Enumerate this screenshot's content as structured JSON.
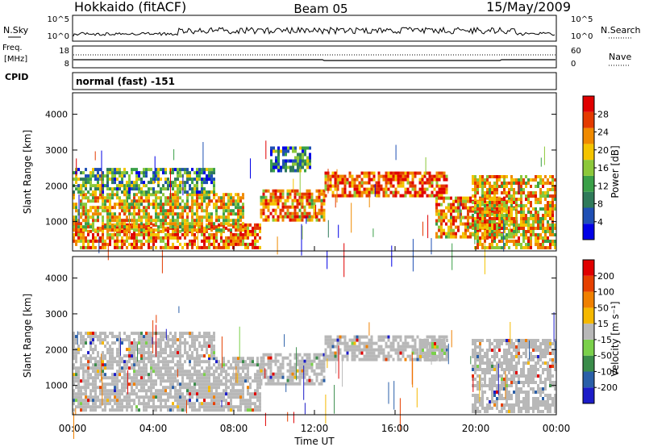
{
  "header": {
    "station": "Hokkaido (fitACF)",
    "beam": "Beam 05",
    "date": "15/May/2009"
  },
  "strip_labels": {
    "nsky": "N.Sky",
    "nsearch": "N.Search",
    "freq_line1": "Freq.",
    "freq_line2": "[MHz]",
    "nave": "Nave",
    "cpid": "CPID",
    "mode": "normal (fast) -151"
  },
  "strip_ticks": {
    "noise_left": [
      "10^5",
      "10^0"
    ],
    "noise_right": [
      "10^5",
      "10^0"
    ],
    "freq_left": [
      "18",
      "8"
    ],
    "nave_right": [
      "60",
      "0"
    ]
  },
  "colors": {
    "power": [
      "#0000e6",
      "#1f4fb4",
      "#2f7a5a",
      "#3aa048",
      "#8cc83a",
      "#f4c400",
      "#f08a00",
      "#e43a00",
      "#e00000"
    ],
    "velocity": [
      "#1c1cc8",
      "#2a5fa8",
      "#3a8c4a",
      "#7ad04a",
      "#b8b8b8",
      "#f5b800",
      "#f08000",
      "#e64000",
      "#e00000"
    ]
  },
  "chart_data": [
    {
      "type": "heatmap",
      "name": "power",
      "xlabel": "",
      "ylabel": "Slant Range [km]",
      "colorbar_label": "Power [dB]",
      "colorbar_ticks": [
        "28",
        "24",
        "20",
        "16",
        "12",
        "8",
        "4"
      ],
      "x_ticks": [
        "00:00",
        "04:00",
        "08:00",
        "12:00",
        "16:00",
        "20:00",
        "00:00"
      ],
      "xlim_hours": [
        0,
        24
      ],
      "ylim_km": [
        180,
        4600
      ],
      "y_ticks": [
        1000,
        2000,
        3000,
        4000
      ],
      "echo_bands": [
        {
          "t_start": 0.0,
          "t_end": 9.3,
          "r_low": 300,
          "r_high": 950,
          "level": 0.75
        },
        {
          "t_start": 0.0,
          "t_end": 8.5,
          "r_low": 800,
          "r_high": 1800,
          "level": 0.6
        },
        {
          "t_start": 9.3,
          "t_end": 12.5,
          "r_low": 1050,
          "r_high": 1900,
          "level": 0.7
        },
        {
          "t_start": 12.5,
          "t_end": 18.6,
          "r_low": 1700,
          "r_high": 2400,
          "level": 0.8
        },
        {
          "t_start": 18.0,
          "t_end": 22.0,
          "r_low": 600,
          "r_high": 1700,
          "level": 0.7
        },
        {
          "t_start": 19.8,
          "t_end": 24.0,
          "r_low": 300,
          "r_high": 2300,
          "level": 0.65
        },
        {
          "t_start": 0.0,
          "t_end": 7.0,
          "r_low": 1800,
          "r_high": 2500,
          "level": 0.35
        },
        {
          "t_start": 9.8,
          "t_end": 11.8,
          "r_low": 2400,
          "r_high": 3100,
          "level": 0.3
        }
      ]
    },
    {
      "type": "heatmap",
      "name": "velocity",
      "xlabel": "Time UT",
      "ylabel": "Slant Range [km]",
      "colorbar_label": "Velocity [m s⁻¹]",
      "colorbar_ticks": [
        "200",
        "100",
        "50",
        "15",
        "-15",
        "-50",
        "-100",
        "-200"
      ],
      "x_ticks": [
        "00:00",
        "04:00",
        "08:00",
        "12:00",
        "16:00",
        "20:00",
        "00:00"
      ],
      "xlim_hours": [
        0,
        24
      ],
      "ylim_km": [
        180,
        4600
      ],
      "y_ticks": [
        1000,
        2000,
        3000,
        4000
      ],
      "echo_bands": [
        {
          "t_start": 0.0,
          "t_end": 9.3,
          "r_low": 300,
          "r_high": 1800,
          "level": 0.5
        },
        {
          "t_start": 9.3,
          "t_end": 12.5,
          "r_low": 1050,
          "r_high": 1900,
          "level": 0.5
        },
        {
          "t_start": 12.5,
          "t_end": 18.6,
          "r_low": 1700,
          "r_high": 2400,
          "level": 0.5
        },
        {
          "t_start": 17.2,
          "t_end": 18.6,
          "r_low": 1700,
          "r_high": 2300,
          "level": 0.35
        },
        {
          "t_start": 19.8,
          "t_end": 24.0,
          "r_low": 300,
          "r_high": 2300,
          "level": 0.5
        },
        {
          "t_start": 0.0,
          "t_end": 7.0,
          "r_low": 1800,
          "r_high": 2500,
          "level": 0.5
        }
      ]
    }
  ]
}
